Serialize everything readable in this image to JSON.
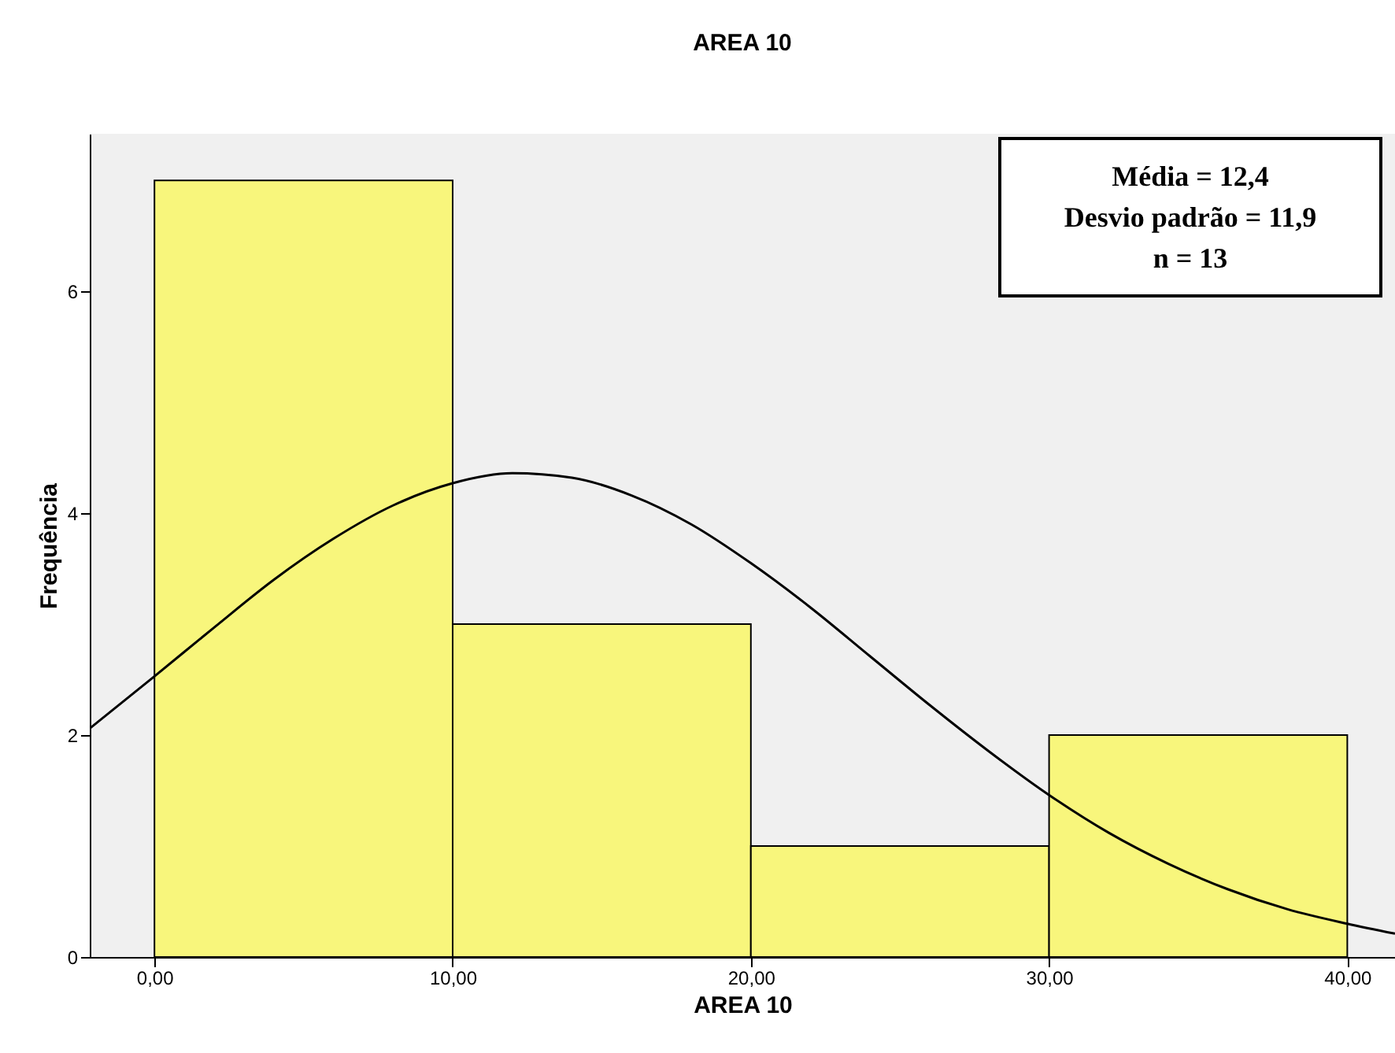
{
  "chart_data": {
    "type": "histogram",
    "title": "AREA 10",
    "xlabel": "AREA 10",
    "ylabel": "Frequência",
    "bins": [
      0,
      10,
      20,
      30,
      40
    ],
    "series": [
      {
        "color": "#f8f67c",
        "values": [
          7,
          3,
          1,
          2
        ]
      },
      {
        "type": "line",
        "color": "#000000",
        "x": [
          -2.17,
          0,
          2,
          4,
          6,
          8,
          10,
          12,
          14,
          16,
          18,
          20,
          22,
          24,
          26,
          28,
          30,
          32,
          34,
          36,
          38,
          40,
          41.6
        ],
        "values": [
          2.06,
          2.53,
          2.97,
          3.4,
          3.77,
          4.07,
          4.27,
          4.36,
          4.32,
          4.16,
          3.9,
          3.55,
          3.15,
          2.71,
          2.27,
          1.85,
          1.46,
          1.12,
          0.84,
          0.61,
          0.43,
          0.3,
          0.21
        ]
      }
    ],
    "xlim": [
      -2.17,
      41.6
    ],
    "xticks": [
      {
        "value": 0,
        "label": "0,00"
      },
      {
        "value": 10,
        "label": "10,00"
      },
      {
        "value": 20,
        "label": "20,00"
      },
      {
        "value": 30,
        "label": "30,00"
      },
      {
        "value": 40,
        "label": "40,00"
      }
    ],
    "ylim": [
      0,
      7.42
    ],
    "yticks": [
      0,
      2,
      4,
      6
    ],
    "grid": false,
    "annotations": [
      "Média = 12,4",
      "Desvio padrão = 11,9",
      "n = 13"
    ]
  }
}
